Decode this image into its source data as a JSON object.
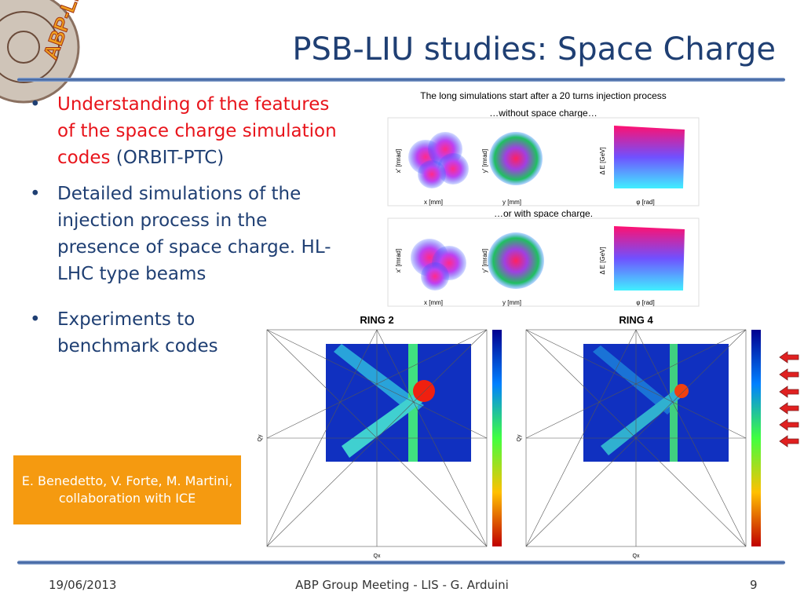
{
  "header": {
    "logo": "ABP-LIS",
    "title": "PSB-LIU studies: Space Charge"
  },
  "bullets": [
    {
      "parts": [
        "Understanding of the features of the space charge simulation codes",
        "(ORBIT-PTC)"
      ]
    },
    {
      "parts": [
        "Detailed simulations of the injection process in the presence of space charge. HL-LHC type beams"
      ]
    },
    {
      "parts": [
        "Experiments to benchmark codes"
      ]
    }
  ],
  "figure_top": {
    "caption": "The long simulations start after a 20 turns injection process",
    "row_labels": [
      "…without space charge…",
      "…or with space charge."
    ],
    "axes": [
      {
        "x": "x [mm]",
        "y": "x' [mrad]"
      },
      {
        "x": "y [mm]",
        "y": "y' [mrad]"
      },
      {
        "x": "φ [rad]",
        "y": "Δ E [GeV]"
      }
    ]
  },
  "figure_bottom": {
    "panels": [
      {
        "title": "RING 2",
        "x": "Qx",
        "y": "Qy"
      },
      {
        "title": "RING 4",
        "x": "Qx",
        "y": "Qy"
      }
    ]
  },
  "credit": "E. Benedetto, V. Forte, M. Martini, collaboration with ICE",
  "footer": {
    "date": "19/06/2013",
    "center": "ABP Group Meeting - LIS - G. Arduini",
    "page": "9"
  }
}
